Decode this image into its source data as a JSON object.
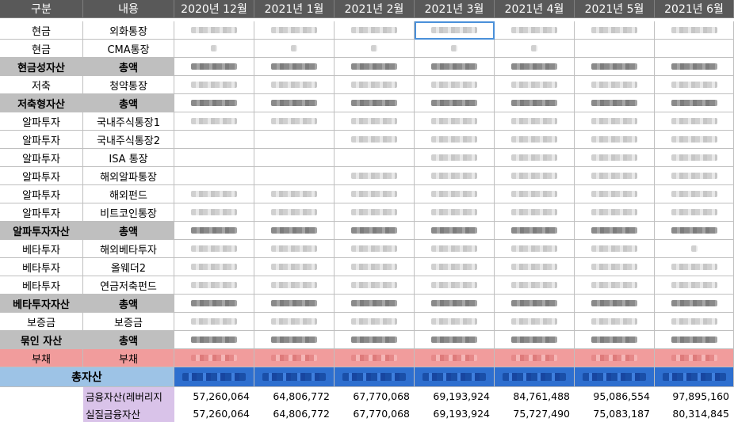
{
  "header": {
    "col_category": "구분",
    "col_content": "내용",
    "months": [
      "2020년 12월",
      "2021년 1월",
      "2021년 2월",
      "2021년 3월",
      "2021년 4월",
      "2021년 5월",
      "2021년 6월"
    ]
  },
  "rows": [
    {
      "c0": "현금",
      "c1": "외화통장"
    },
    {
      "c0": "현금",
      "c1": "CMA통장"
    },
    {
      "c0": "현금성자산",
      "c1": "총액"
    },
    {
      "c0": "저축",
      "c1": "청약통장"
    },
    {
      "c0": "저축형자산",
      "c1": "총액"
    },
    {
      "c0": "알파투자",
      "c1": "국내주식통장1"
    },
    {
      "c0": "알파투자",
      "c1": "국내주식통장2"
    },
    {
      "c0": "알파투자",
      "c1": "ISA 통장"
    },
    {
      "c0": "알파투자",
      "c1": "해외알파통장"
    },
    {
      "c0": "알파투자",
      "c1": "해외펀드"
    },
    {
      "c0": "알파투자",
      "c1": "비트코인통장"
    },
    {
      "c0": "알파투자자산",
      "c1": "총액"
    },
    {
      "c0": "베타투자",
      "c1": "해외베타투자"
    },
    {
      "c0": "베타투자",
      "c1": "올웨더2"
    },
    {
      "c0": "베타투자",
      "c1": "연금저축펀드"
    },
    {
      "c0": "베타투자자산",
      "c1": "총액"
    },
    {
      "c0": "보증금",
      "c1": "보증금"
    },
    {
      "c0": "묶인 자산",
      "c1": "총액"
    },
    {
      "c0": "부채",
      "c1": "부채"
    }
  ],
  "total": {
    "label": "총자산"
  },
  "summary": [
    {
      "label": "금융자산(레버리지",
      "values": [
        "57,260,064",
        "64,806,772",
        "67,770,068",
        "69,193,924",
        "84,761,488",
        "95,086,554",
        "97,895,160"
      ]
    },
    {
      "label": "실질금융자산",
      "values": [
        "57,260,064",
        "64,806,772",
        "67,770,068",
        "69,193,924",
        "75,727,490",
        "75,083,187",
        "80,314,845"
      ]
    }
  ],
  "colors": {
    "header_bg": "#595959",
    "subtotal_bg": "#bfbfbf",
    "debt_bg": "#f19c9c",
    "total_bg": "#9dc3e6",
    "summary_label_bg": "#d9c3e9"
  }
}
